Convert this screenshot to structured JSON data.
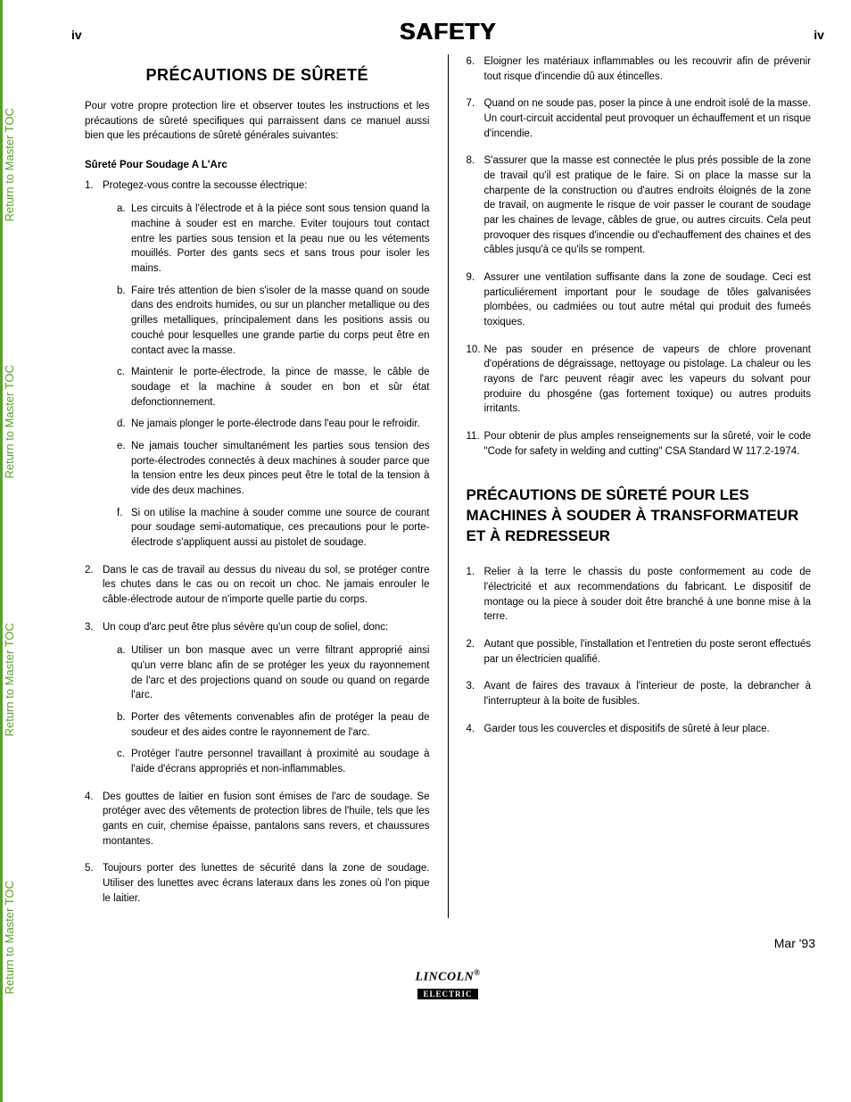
{
  "page_number": "iv",
  "main_title": "SAFETY",
  "sidebar_link": "Return to Master TOC",
  "sidebar_color": "#5aa02c",
  "date": "Mar '93",
  "logo_top": "LINCOLN",
  "logo_reg": "®",
  "logo_bot": "ELECTRIC",
  "left": {
    "title": "PRÉCAUTIONS DE SÛRETÉ",
    "intro": "Pour votre propre protection lire et observer toutes les instructions et les précautions de sûreté specifiques qui parraissent dans ce manuel aussi bien que les précautions de sûreté générales suivantes:",
    "subhead": "Sûreté Pour Soudage A L'Arc",
    "items": [
      {
        "n": "1.",
        "t": "Protegez-vous contre la secousse électrique:",
        "sub": [
          {
            "l": "a.",
            "t": "Les circuits à l'électrode et à la piéce sont sous tension quand la machine à souder est en marche. Eviter toujours tout contact entre les parties sous tension et la peau nue ou les vétements mouillés. Porter des gants secs et sans trous pour isoler les mains."
          },
          {
            "l": "b.",
            "t": "Faire trés attention de bien s'isoler de la masse quand on soude dans des endroits humides, ou sur un plancher metallique ou des grilles metalliques, principalement dans les positions assis ou couché pour lesquelles une grande partie du corps peut être en contact avec la masse."
          },
          {
            "l": "c.",
            "t": "Maintenir le porte-électrode, la pince de masse, le câble de soudage et la machine à souder en bon et sûr état defonctionnement."
          },
          {
            "l": "d.",
            "t": "Ne jamais plonger le porte-électrode dans l'eau pour le refroidir."
          },
          {
            "l": "e.",
            "t": "Ne jamais toucher simultanément les parties sous tension des porte-électrodes connectés à deux machines à souder parce que la tension entre les deux pinces peut être le total de la tension à vide des deux machines."
          },
          {
            "l": "f.",
            "t": "Si on utilise la machine à souder comme une source de courant pour soudage semi-automatique, ces precautions pour le porte-électrode s'appliquent aussi au pistolet de soudage."
          }
        ]
      },
      {
        "n": "2.",
        "t": "Dans le cas de travail au dessus du niveau du sol, se protéger contre les chutes dans le cas ou on recoit un choc. Ne jamais enrouler le câble-électrode autour de n'importe quelle partie du corps."
      },
      {
        "n": "3.",
        "t": "Un coup d'arc peut être plus sévère qu'un coup de soliel, donc:",
        "sub": [
          {
            "l": "a.",
            "t": "Utiliser un bon masque avec un verre filtrant approprié ainsi qu'un verre blanc afin de se protéger les yeux du rayonnement de l'arc et des projections quand on soude ou quand on regarde l'arc."
          },
          {
            "l": "b.",
            "t": "Porter des vêtements convenables afin de protéger la peau de soudeur et des aides contre le rayonnement de l'arc."
          },
          {
            "l": "c.",
            "t": "Protéger l'autre personnel travaillant à proximité au soudage à l'aide d'écrans appropriés et non-inflammables."
          }
        ]
      },
      {
        "n": "4.",
        "t": "Des gouttes de laitier en fusion sont émises de l'arc de soudage. Se protéger avec des vêtements de protection libres de l'huile, tels que les gants en cuir, chemise épaisse, pantalons sans revers, et chaussures montantes."
      },
      {
        "n": "5.",
        "t": "Toujours porter des lunettes de sécurité dans la zone de soudage. Utiliser des lunettes avec écrans lateraux dans les zones où l'on pique le laitier."
      }
    ]
  },
  "right": {
    "cont": [
      {
        "n": "6.",
        "t": "Eloigner les matériaux inflammables ou les recouvrir afin de prévenir tout risque d'incendie dû aux étincelles."
      },
      {
        "n": "7.",
        "t": "Quand on ne soude pas, poser la pince à une endroit isolé de la masse. Un court-circuit accidental peut provoquer un échauffement et un risque d'incendie."
      },
      {
        "n": "8.",
        "t": "S'assurer que la masse est connectée le plus prés possible de la zone de travail qu'il est pratique de le faire. Si on place la masse sur la charpente de la construction ou d'autres endroits éloignés de la zone de travail, on augmente le risque de voir passer le courant de soudage par les chaines de levage, câbles de grue, ou autres circuits. Cela peut provoquer des risques d'incendie ou d'echauffement des chaines et des câbles jusqu'à ce qu'ils se rompent."
      },
      {
        "n": "9.",
        "t": "Assurer une ventilation suffisante dans la zone de soudage. Ceci est particuliérement important pour le soudage de tôles galvanisées plombées, ou cadmiées ou tout autre métal qui produit des fumeés toxiques."
      },
      {
        "n": "10.",
        "t": "Ne pas souder en présence de vapeurs de chlore provenant d'opérations de dégraissage, nettoyage ou pistolage. La chaleur ou les rayons de l'arc peuvent réagir avec les vapeurs du solvant pour produire du phosgéne (gas fortement toxique) ou autres produits irritants."
      },
      {
        "n": "11.",
        "t": "Pour obtenir de plus amples renseignements sur la sûreté, voir le code \"Code for safety in welding and cutting\" CSA Standard W 117.2-1974."
      }
    ],
    "title2": "PRÉCAUTIONS DE SÛRETÉ POUR LES MACHINES À SOUDER À TRANSFORMATEUR ET À REDRESSEUR",
    "items2": [
      {
        "n": "1.",
        "t": "Relier à la terre le chassis du poste conformement au code de l'électricité et aux recommendations du fabricant. Le dispositif de montage ou la piece à souder doit être branché à une bonne mise à la terre."
      },
      {
        "n": "2.",
        "t": "Autant que possible, l'installation et l'entretien du poste seront effectués par un électricien qualifié."
      },
      {
        "n": "3.",
        "t": "Avant de faires des travaux à l'interieur de poste, la debrancher à l'interrupteur à la boite de fusibles."
      },
      {
        "n": "4.",
        "t": "Garder tous les couvercles et dispositifs de sûreté à leur place."
      }
    ]
  }
}
